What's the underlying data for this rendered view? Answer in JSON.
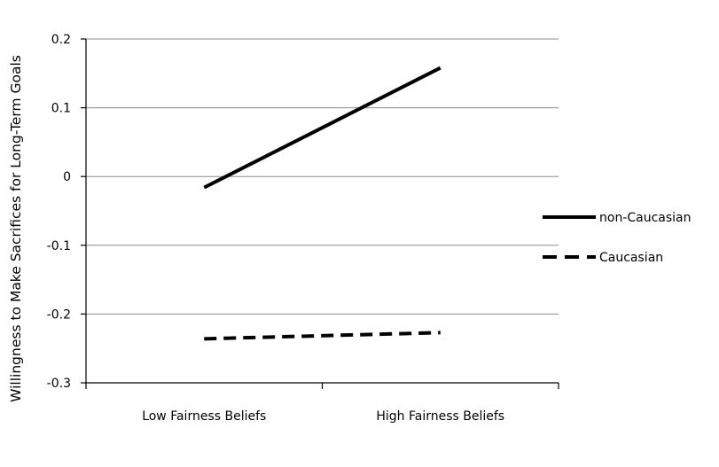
{
  "chart_data": {
    "type": "line",
    "title": "",
    "xlabel": "",
    "ylabel": "Willingness to Make Sacrifices for Long-Term Goals",
    "categories": [
      "Low Fairness Beliefs",
      "High Fairness Beliefs"
    ],
    "ylim": [
      -0.3,
      0.2
    ],
    "yticks": [
      "0.2",
      "0.1",
      "0",
      "-0.1",
      "-0.2",
      "-0.3"
    ],
    "grid": true,
    "legend_position": "right",
    "series": [
      {
        "name": "non-Caucasian",
        "values": [
          -0.016,
          0.158
        ],
        "line_style": "solid",
        "color": "#000000"
      },
      {
        "name": "Caucasian",
        "values": [
          -0.236,
          -0.227
        ],
        "line_style": "dashed",
        "color": "#000000"
      }
    ]
  }
}
